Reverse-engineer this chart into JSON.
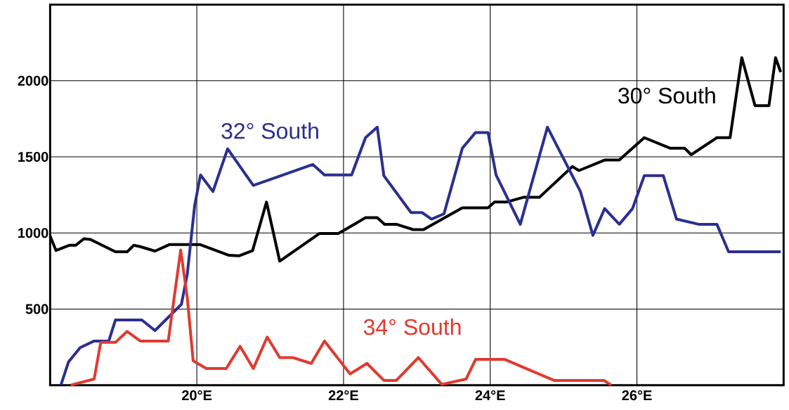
{
  "chart_data": {
    "type": "line",
    "xlim": [
      18,
      28
    ],
    "ylim": [
      0,
      2500
    ],
    "xticks": [
      {
        "value": 20,
        "label": "20°E"
      },
      {
        "value": 22,
        "label": "22°E"
      },
      {
        "value": 24,
        "label": "24°E"
      },
      {
        "value": 26,
        "label": "26°E"
      }
    ],
    "yticks": [
      500,
      1000,
      1500,
      2000
    ],
    "grid": true,
    "legend": false,
    "marker": "none",
    "line_style": "solid",
    "series": [
      {
        "name": "30° South",
        "color": "#000000",
        "x": [
          18.0,
          18.08,
          18.26,
          18.35,
          18.46,
          18.55,
          18.89,
          19.05,
          19.14,
          19.23,
          19.43,
          19.63,
          20.04,
          20.44,
          20.58,
          20.76,
          20.95,
          21.13,
          21.67,
          21.93,
          22.3,
          22.46,
          22.56,
          22.72,
          22.95,
          23.09,
          23.62,
          23.97,
          24.06,
          24.22,
          24.45,
          24.67,
          25.12,
          25.21,
          25.56,
          25.76,
          26.1,
          26.45,
          26.65,
          26.74,
          27.09,
          27.27,
          27.43,
          27.61,
          27.8,
          27.89,
          27.96
        ],
        "values": [
          980,
          885,
          919,
          919,
          962,
          957,
          876,
          876,
          919,
          910,
          881,
          924,
          924,
          853,
          850,
          884,
          1203,
          815,
          996,
          996,
          1100,
          1100,
          1057,
          1057,
          1022,
          1022,
          1165,
          1165,
          1203,
          1203,
          1234,
          1234,
          1436,
          1410,
          1479,
          1479,
          1626,
          1557,
          1557,
          1514,
          1626,
          1626,
          2152,
          1836,
          1836,
          2152,
          2057
        ]
      },
      {
        "name": "32° South",
        "color": "#2b2f8f",
        "x": [
          18.15,
          18.25,
          18.41,
          18.6,
          18.8,
          18.89,
          19.25,
          19.43,
          19.79,
          19.87,
          19.97,
          20.05,
          20.22,
          20.42,
          20.77,
          21.58,
          21.74,
          22.11,
          22.3,
          22.46,
          22.55,
          22.92,
          23.07,
          23.2,
          23.37,
          23.62,
          23.8,
          23.97,
          24.08,
          24.41,
          24.78,
          25.23,
          25.4,
          25.56,
          25.76,
          25.94,
          26.1,
          26.36,
          26.54,
          26.84,
          27.09,
          27.25,
          27.96
        ],
        "values": [
          5,
          152,
          247,
          290,
          290,
          428,
          428,
          359,
          531,
          729,
          1178,
          1381,
          1272,
          1553,
          1312,
          1450,
          1381,
          1381,
          1626,
          1695,
          1376,
          1134,
          1134,
          1091,
          1126,
          1557,
          1660,
          1660,
          1381,
          1057,
          1695,
          1272,
          984,
          1160,
          1057,
          1160,
          1376,
          1376,
          1091,
          1057,
          1057,
          876,
          876
        ]
      },
      {
        "name": "34° South",
        "color": "#e03a30",
        "x": [
          18.28,
          18.6,
          18.69,
          18.89,
          19.05,
          19.23,
          19.61,
          19.78,
          19.87,
          19.95,
          20.13,
          20.4,
          20.59,
          20.77,
          20.96,
          21.13,
          21.31,
          21.56,
          21.74,
          22.09,
          22.32,
          22.55,
          22.72,
          23.02,
          23.34,
          23.67,
          23.8,
          24.2,
          24.87,
          25.24,
          25.55,
          25.65
        ],
        "values": [
          0,
          40,
          281,
          281,
          353,
          290,
          290,
          888,
          574,
          160,
          109,
          109,
          255,
          109,
          316,
          181,
          181,
          143,
          290,
          74,
          143,
          31,
          31,
          181,
          5,
          40,
          169,
          169,
          31,
          31,
          31,
          0
        ]
      }
    ]
  }
}
